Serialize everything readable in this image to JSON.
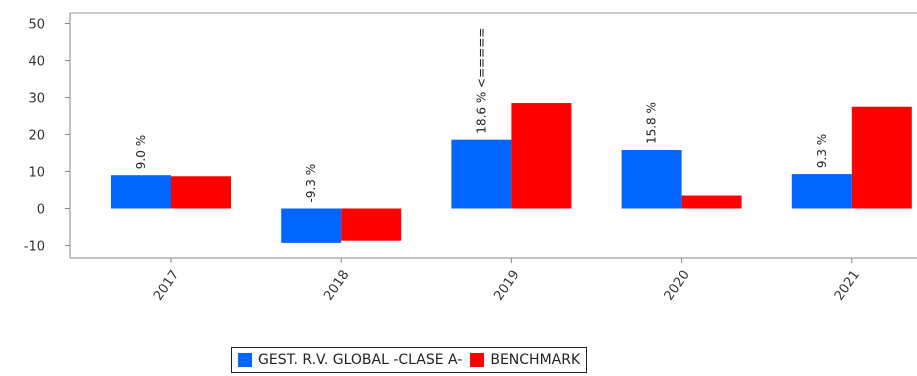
{
  "chart_data": {
    "type": "bar",
    "categories": [
      "2017",
      "2018",
      "2019",
      "2020",
      "2021"
    ],
    "series": [
      {
        "name": "GEST. R.V. GLOBAL -CLASE A-",
        "color": "#0066ff",
        "values": [
          9.0,
          -9.3,
          18.6,
          15.8,
          9.3
        ],
        "labels": [
          "9.0 %",
          "-9.3 %",
          "18.6 % <=====",
          "15.8 %",
          "9.3 %"
        ]
      },
      {
        "name": "BENCHMARK",
        "color": "#ff0000",
        "values": [
          8.7,
          -8.7,
          28.5,
          3.5,
          27.5
        ]
      }
    ],
    "yticks": [
      50,
      40,
      30,
      20,
      10,
      0,
      -10
    ],
    "ylim": [
      -13,
      53
    ],
    "grid": false,
    "legend_position": "bottom"
  }
}
